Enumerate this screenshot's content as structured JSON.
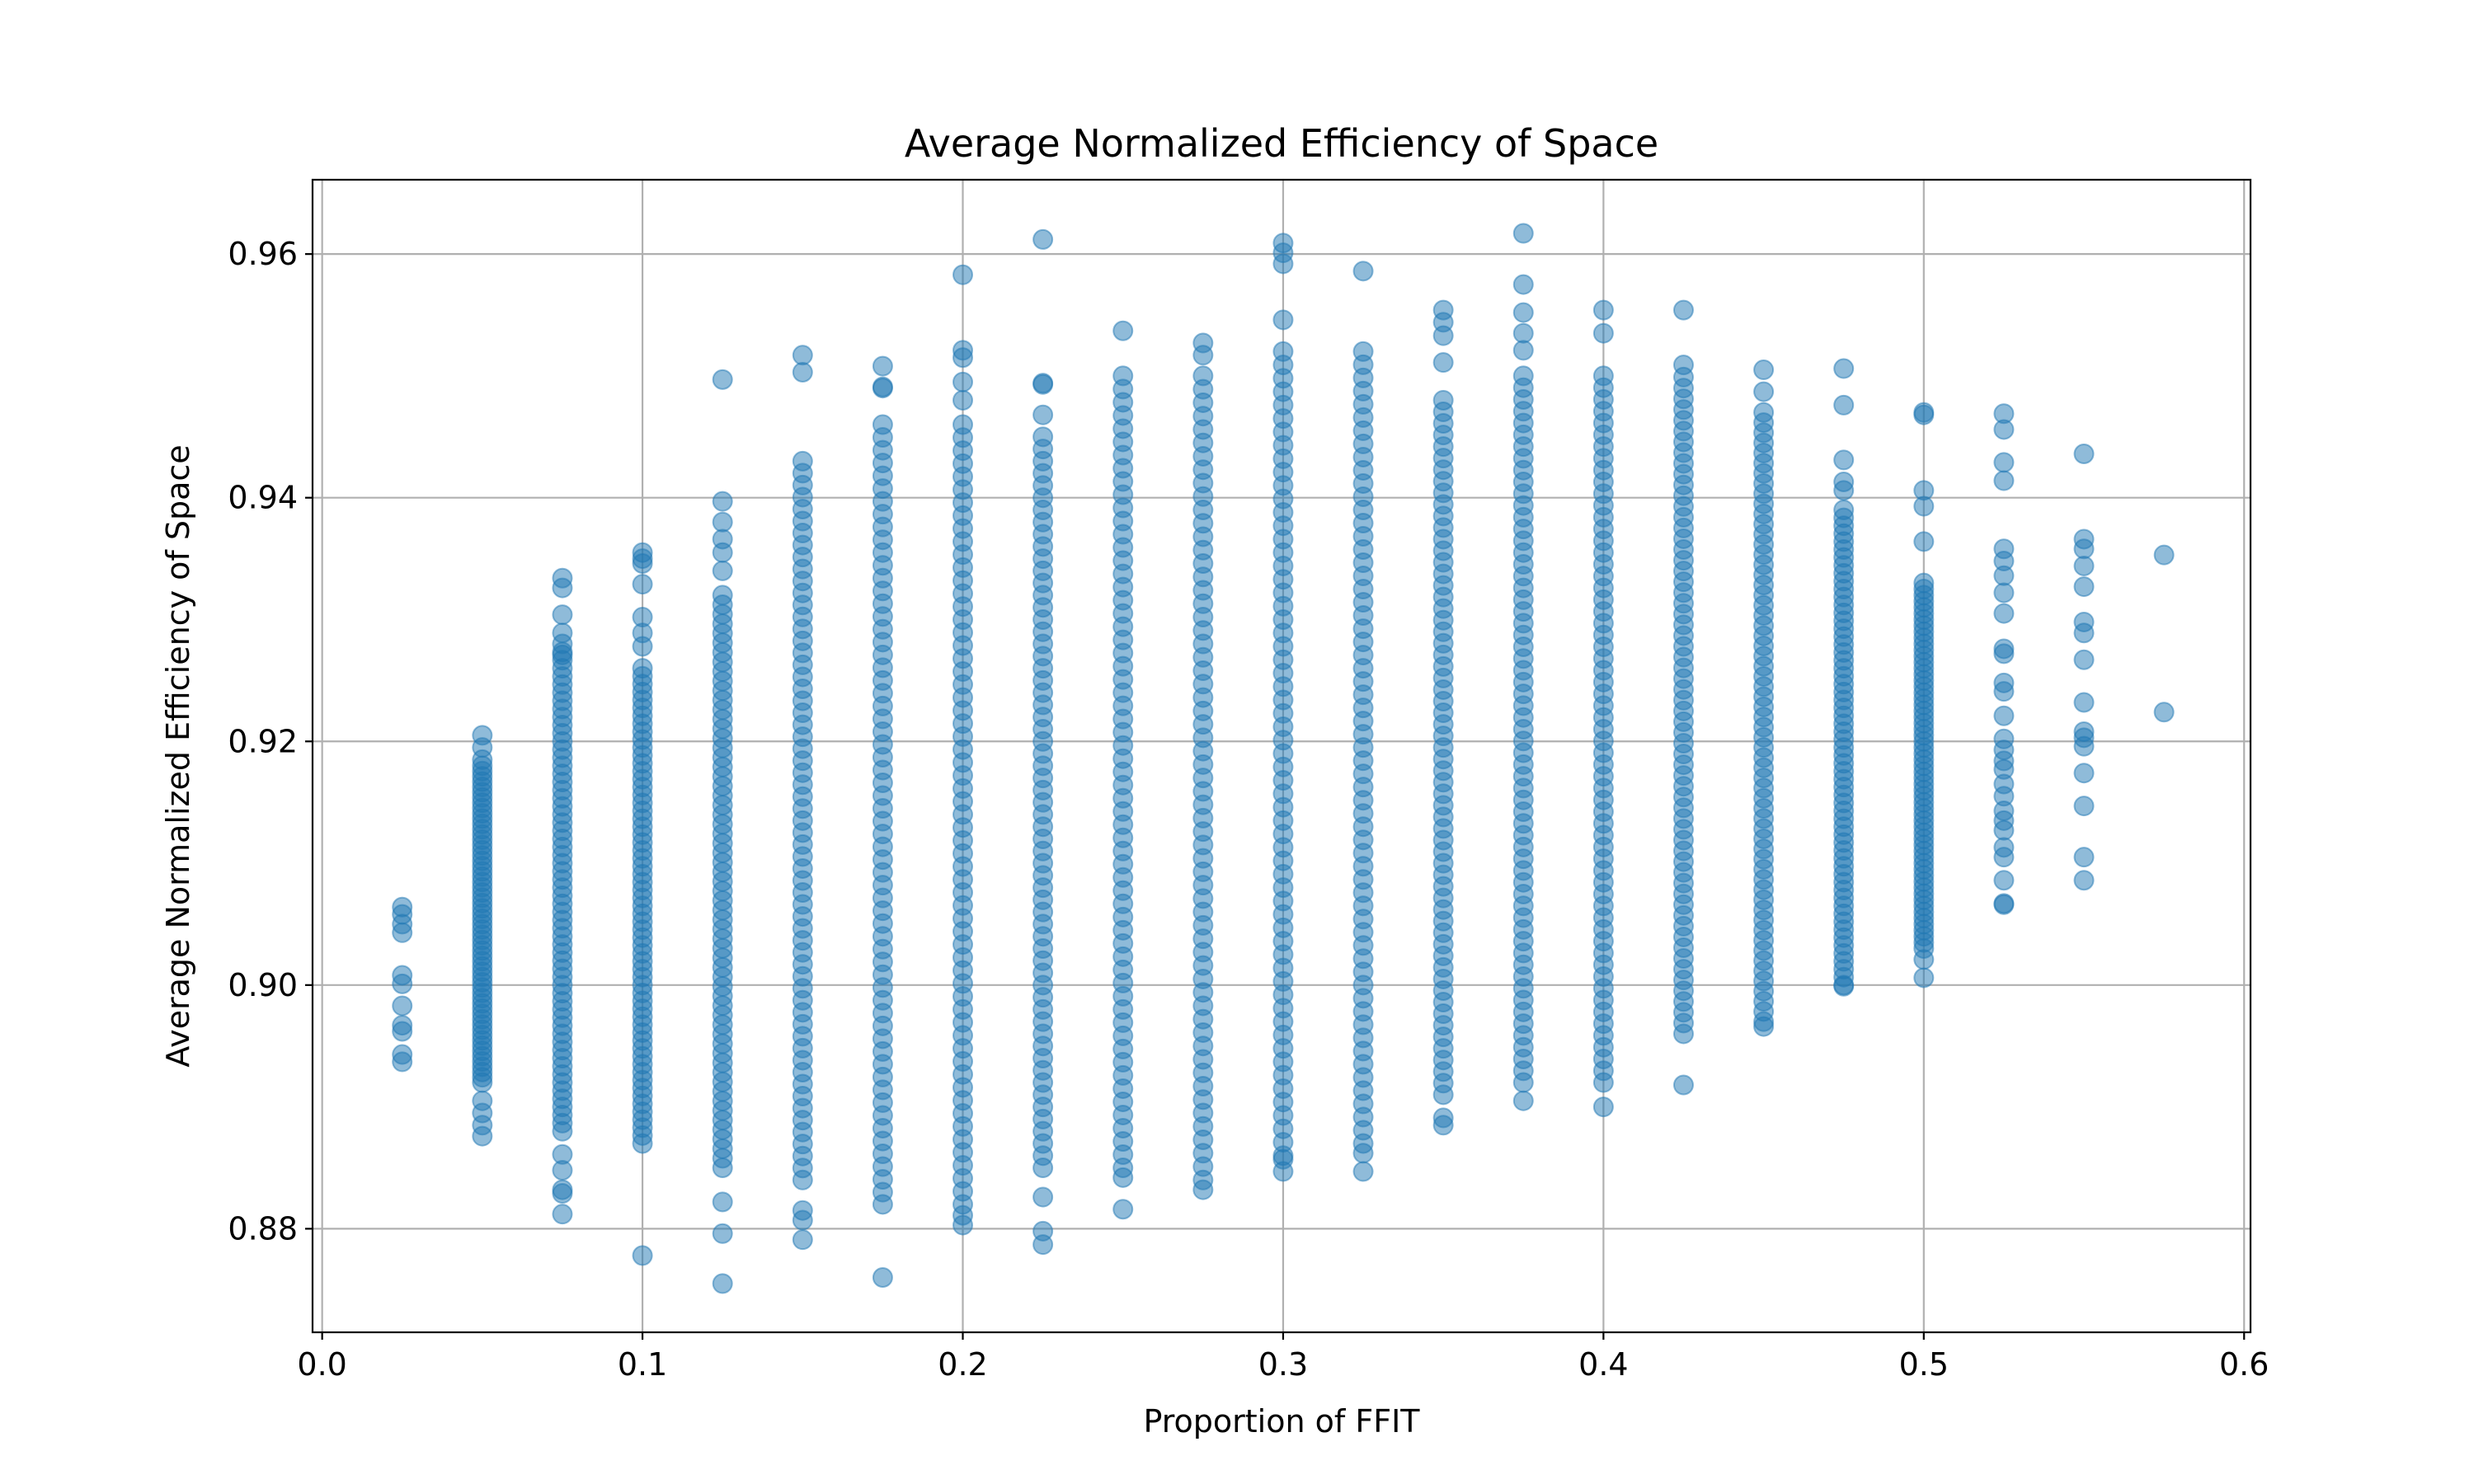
{
  "chart_data": {
    "type": "scatter",
    "title": "Average Normalized Efficiency of Space",
    "xlabel": "Proportion of FFIT",
    "ylabel": "Average Normalized Efficiency of Space",
    "xlim": [
      -0.003,
      0.602
    ],
    "ylim": [
      0.8715,
      0.9661
    ],
    "xticks": [
      "0.0",
      "0.1",
      "0.2",
      "0.3",
      "0.4",
      "0.5",
      "0.6"
    ],
    "yticks": [
      "0.88",
      "0.90",
      "0.92",
      "0.94",
      "0.96"
    ],
    "grid": true,
    "marker_color": "#1f77b4",
    "marker_alpha": 0.5,
    "columns": [
      {
        "x": 0.025,
        "band": [],
        "points": [
          0.9064,
          0.9058,
          0.905,
          0.9043,
          0.9008,
          0.9001,
          0.8983,
          0.8967,
          0.8962,
          0.8943,
          0.8937
        ]
      },
      {
        "x": 0.05,
        "band": [
          0.892,
          0.918
        ],
        "points": [
          0.9205,
          0.9195,
          0.9185,
          0.8905,
          0.8895,
          0.8885,
          0.8876
        ]
      },
      {
        "x": 0.075,
        "band": [
          0.888,
          0.928
        ],
        "points": [
          0.9334,
          0.9326,
          0.9304,
          0.9289,
          0.9271,
          0.8861,
          0.8848,
          0.8832,
          0.8829,
          0.8812
        ]
      },
      {
        "x": 0.1,
        "band": [
          0.887,
          0.926
        ],
        "points": [
          0.9355,
          0.935,
          0.9346,
          0.9329,
          0.9302,
          0.9289,
          0.9278,
          0.8778
        ]
      },
      {
        "x": 0.125,
        "band": [
          0.885,
          0.932
        ],
        "points": [
          0.9497,
          0.9397,
          0.938,
          0.9366,
          0.9355,
          0.934,
          0.8822,
          0.8796,
          0.8755
        ]
      },
      {
        "x": 0.15,
        "band": [
          0.884,
          0.943
        ],
        "points": [
          0.9517,
          0.9503,
          0.8815,
          0.8807,
          0.8791
        ]
      },
      {
        "x": 0.175,
        "band": [
          0.883,
          0.946
        ],
        "points": [
          0.9508,
          0.9491,
          0.949,
          0.882,
          0.876
        ]
      },
      {
        "x": 0.2,
        "band": [
          0.882,
          0.946
        ],
        "points": [
          0.9583,
          0.9521,
          0.9515,
          0.9495,
          0.948,
          0.8811,
          0.8803
        ]
      },
      {
        "x": 0.225,
        "band": [
          0.885,
          0.945
        ],
        "points": [
          0.9612,
          0.9494,
          0.9493,
          0.9468,
          0.8826,
          0.8798,
          0.8787
        ]
      },
      {
        "x": 0.25,
        "band": [
          0.885,
          0.95
        ],
        "points": [
          0.9537,
          0.8842,
          0.8816
        ]
      },
      {
        "x": 0.275,
        "band": [
          0.884,
          0.95
        ],
        "points": [
          0.9527,
          0.9517,
          0.8832
        ]
      },
      {
        "x": 0.3,
        "band": [
          0.886,
          0.952
        ],
        "points": [
          0.9609,
          0.9601,
          0.9592,
          0.9546,
          0.8857,
          0.8847
        ]
      },
      {
        "x": 0.325,
        "band": [
          0.887,
          0.952
        ],
        "points": [
          0.9586,
          0.8862,
          0.8847
        ]
      },
      {
        "x": 0.35,
        "band": [
          0.891,
          0.948
        ],
        "points": [
          0.9554,
          0.9544,
          0.9533,
          0.9511,
          0.8891,
          0.8885
        ]
      },
      {
        "x": 0.375,
        "band": [
          0.892,
          0.95
        ],
        "points": [
          0.9617,
          0.9575,
          0.9552,
          0.9535,
          0.9521,
          0.8905
        ]
      },
      {
        "x": 0.4,
        "band": [
          0.892,
          0.95
        ],
        "points": [
          0.9554,
          0.9535,
          0.89
        ]
      },
      {
        "x": 0.425,
        "band": [
          0.896,
          0.949
        ],
        "points": [
          0.9554,
          0.9509,
          0.9499,
          0.8918
        ]
      },
      {
        "x": 0.45,
        "band": [
          0.897,
          0.947
        ],
        "points": [
          0.9505,
          0.9487,
          0.8966
        ]
      },
      {
        "x": 0.475,
        "band": [
          0.9,
          0.939
        ],
        "points": [
          0.9506,
          0.9476,
          0.9431,
          0.9413,
          0.9406,
          0.8999
        ]
      },
      {
        "x": 0.5,
        "band": [
          0.903,
          0.933
        ],
        "points": [
          0.947,
          0.9468,
          0.9406,
          0.9393,
          0.9364,
          0.9021,
          0.9006
        ]
      },
      {
        "x": 0.525,
        "band": [],
        "points": [
          0.9469,
          0.9456,
          0.9429,
          0.9414,
          0.9358,
          0.9348,
          0.9336,
          0.9322,
          0.9305,
          0.9276,
          0.9272,
          0.9248,
          0.9241,
          0.9221,
          0.9202,
          0.9193,
          0.9184,
          0.9177,
          0.9165,
          0.9155,
          0.9143,
          0.9135,
          0.9127,
          0.9113,
          0.9105,
          0.9086,
          0.9067,
          0.9066
        ]
      },
      {
        "x": 0.55,
        "band": [],
        "points": [
          0.9436,
          0.9366,
          0.9358,
          0.9344,
          0.9327,
          0.9298,
          0.9289,
          0.9267,
          0.9232,
          0.9208,
          0.9203,
          0.9196,
          0.9174,
          0.9147,
          0.9105,
          0.9086
        ]
      },
      {
        "x": 0.575,
        "band": [],
        "points": [
          0.9353,
          0.9224
        ]
      }
    ]
  }
}
